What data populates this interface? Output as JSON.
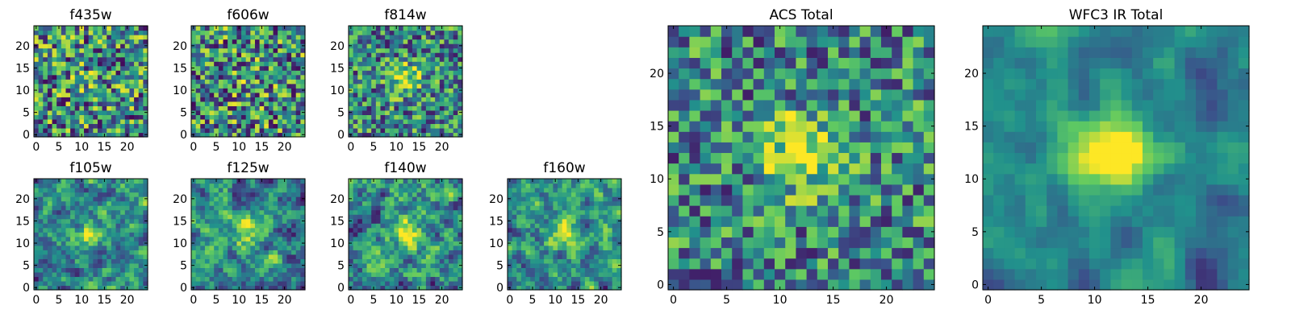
{
  "colormap": [
    "#440154",
    "#3b528b",
    "#21918c",
    "#5ec962",
    "#fde725"
  ],
  "chart_data": [
    {
      "type": "heatmap",
      "title": "f435w",
      "image_size": 25,
      "xlim": [
        0,
        24
      ],
      "ylim": [
        0,
        24
      ],
      "xticks": [
        0,
        5,
        10,
        15,
        20
      ],
      "yticks": [
        0,
        5,
        10,
        15,
        20
      ],
      "seed": 11,
      "peak": 0.1,
      "noise": 0.95,
      "smooth": 0,
      "colorbar": false
    },
    {
      "type": "heatmap",
      "title": "f606w",
      "image_size": 25,
      "xlim": [
        0,
        24
      ],
      "ylim": [
        0,
        24
      ],
      "xticks": [
        0,
        5,
        10,
        15,
        20
      ],
      "yticks": [
        0,
        5,
        10,
        15,
        20
      ],
      "seed": 23,
      "peak": 0.1,
      "noise": 0.95,
      "smooth": 0,
      "colorbar": false
    },
    {
      "type": "heatmap",
      "title": "f814w",
      "image_size": 25,
      "xlim": [
        0,
        24
      ],
      "ylim": [
        0,
        24
      ],
      "xticks": [
        0,
        5,
        10,
        15,
        20
      ],
      "yticks": [
        0,
        5,
        10,
        15,
        20
      ],
      "seed": 37,
      "peak": 0.45,
      "noise": 0.8,
      "smooth": 0,
      "colorbar": false
    },
    {
      "type": "heatmap",
      "title": "f105w",
      "image_size": 25,
      "xlim": [
        0,
        24
      ],
      "ylim": [
        0,
        24
      ],
      "xticks": [
        0,
        5,
        10,
        15,
        20
      ],
      "yticks": [
        0,
        5,
        10,
        15,
        20
      ],
      "seed": 41,
      "peak": 0.4,
      "noise": 0.85,
      "smooth": 1,
      "colorbar": false
    },
    {
      "type": "heatmap",
      "title": "f125w",
      "image_size": 25,
      "xlim": [
        0,
        24
      ],
      "ylim": [
        0,
        24
      ],
      "xticks": [
        0,
        5,
        10,
        15,
        20
      ],
      "yticks": [
        0,
        5,
        10,
        15,
        20
      ],
      "seed": 53,
      "peak": 0.35,
      "noise": 0.85,
      "smooth": 1,
      "colorbar": false
    },
    {
      "type": "heatmap",
      "title": "f140w",
      "image_size": 25,
      "xlim": [
        0,
        24
      ],
      "ylim": [
        0,
        24
      ],
      "xticks": [
        0,
        5,
        10,
        15,
        20
      ],
      "yticks": [
        0,
        5,
        10,
        15,
        20
      ],
      "seed": 67,
      "peak": 0.45,
      "noise": 0.85,
      "smooth": 1,
      "colorbar": false
    },
    {
      "type": "heatmap",
      "title": "f160w",
      "image_size": 25,
      "xlim": [
        0,
        24
      ],
      "ylim": [
        0,
        24
      ],
      "xticks": [
        0,
        5,
        10,
        15,
        20
      ],
      "yticks": [
        0,
        5,
        10,
        15,
        20
      ],
      "seed": 79,
      "peak": 0.45,
      "noise": 0.85,
      "smooth": 1,
      "colorbar": false
    },
    {
      "type": "heatmap",
      "title": "ACS Total",
      "image_size": 25,
      "xlim": [
        0,
        24
      ],
      "ylim": [
        0,
        24
      ],
      "xticks": [
        0,
        5,
        10,
        15,
        20
      ],
      "yticks": [
        0,
        5,
        10,
        15,
        20
      ],
      "seed": 97,
      "peak": 0.55,
      "noise": 0.75,
      "smooth": 0,
      "colorbar": false
    },
    {
      "type": "heatmap",
      "title": "WFC3 IR Total",
      "image_size": 25,
      "xlim": [
        0,
        24
      ],
      "ylim": [
        0,
        24
      ],
      "xticks": [
        0,
        5,
        10,
        15,
        20
      ],
      "yticks": [
        0,
        5,
        10,
        15,
        20
      ],
      "seed": 131,
      "peak": 0.85,
      "noise": 0.55,
      "smooth": 2,
      "colorbar": false
    }
  ]
}
